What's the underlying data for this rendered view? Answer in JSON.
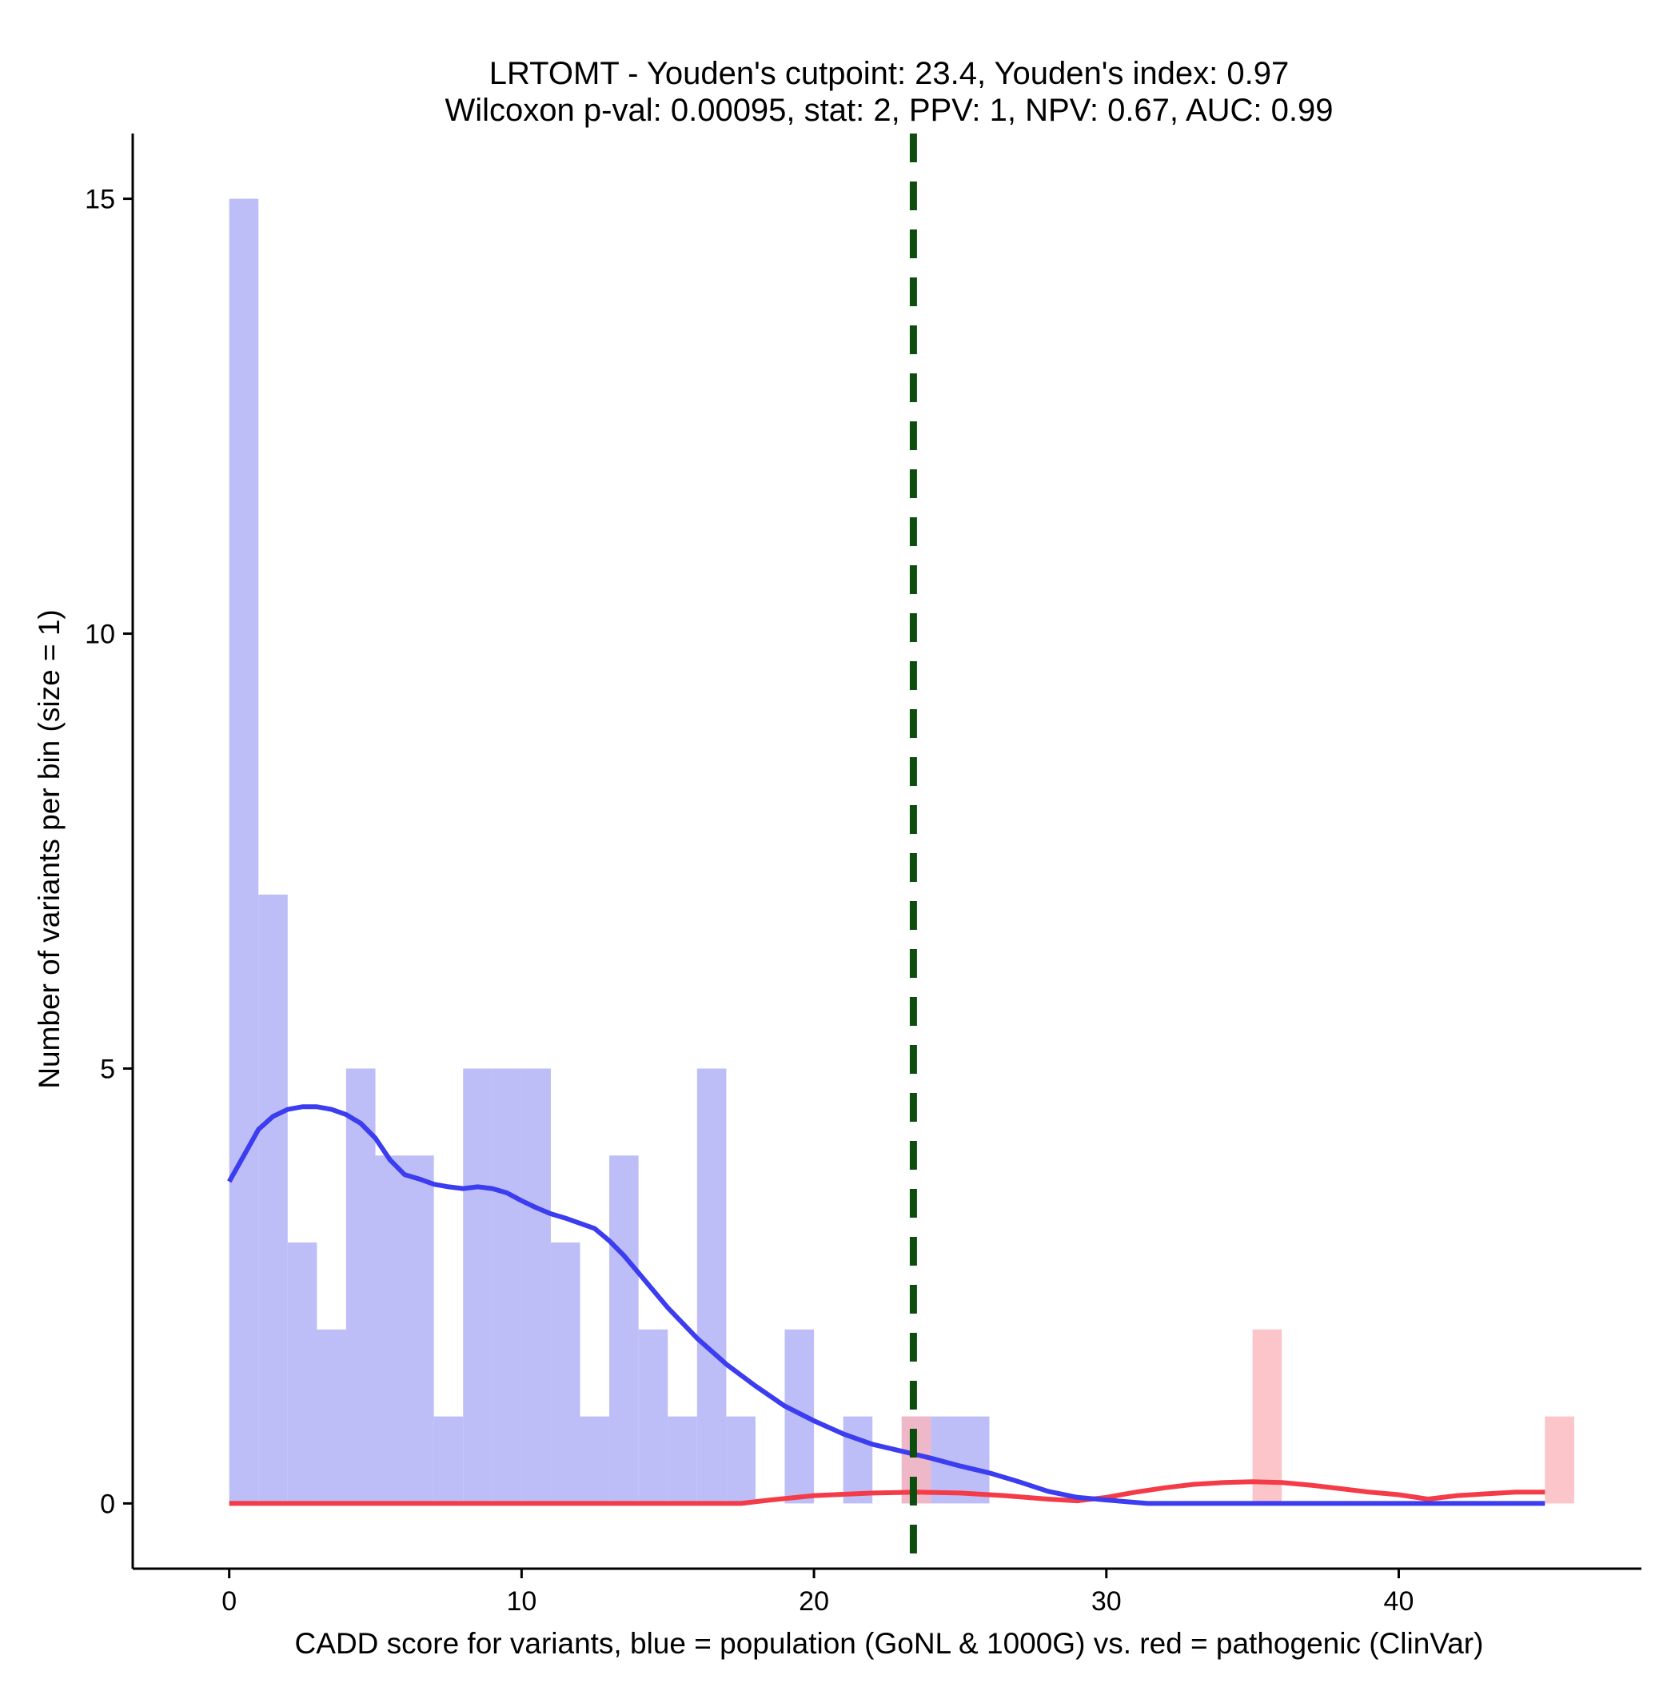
{
  "chart_data": {
    "type": "histogram",
    "title_line1": "LRTOMT - Youden's cutpoint: 23.4, Youden's index: 0.97",
    "title_line2": "Wilcoxon p-val: 0.00095, stat: 2, PPV: 1, NPV: 0.67, AUC: 0.99",
    "xlabel": "CADD score for variants, blue = population (GoNL & 1000G) vs. red = pathogenic (ClinVar)",
    "ylabel": "Number of variants per bin (size = 1)",
    "xlim": [
      -3.3,
      48.3
    ],
    "ylim": [
      -0.75,
      15.75
    ],
    "x_ticks": [
      0,
      10,
      20,
      30,
      40
    ],
    "y_ticks": [
      0,
      5,
      10,
      15
    ],
    "bin_size": 1,
    "cutpoint": 23.4,
    "series": [
      {
        "name": "population (GoNL & 1000G)",
        "color": "#0000ff",
        "bar_fill": "#bdbdf8",
        "bins": [
          {
            "x0": 0,
            "count": 15
          },
          {
            "x0": 1,
            "count": 7
          },
          {
            "x0": 2,
            "count": 3
          },
          {
            "x0": 3,
            "count": 2
          },
          {
            "x0": 4,
            "count": 5
          },
          {
            "x0": 5,
            "count": 4
          },
          {
            "x0": 6,
            "count": 4
          },
          {
            "x0": 7,
            "count": 1
          },
          {
            "x0": 8,
            "count": 5
          },
          {
            "x0": 9,
            "count": 5
          },
          {
            "x0": 10,
            "count": 5
          },
          {
            "x0": 11,
            "count": 3
          },
          {
            "x0": 12,
            "count": 1
          },
          {
            "x0": 13,
            "count": 4
          },
          {
            "x0": 14,
            "count": 2
          },
          {
            "x0": 15,
            "count": 1
          },
          {
            "x0": 16,
            "count": 5
          },
          {
            "x0": 17,
            "count": 1
          },
          {
            "x0": 19,
            "count": 2
          },
          {
            "x0": 21,
            "count": 1
          },
          {
            "x0": 23,
            "count": 1
          },
          {
            "x0": 24,
            "count": 1
          },
          {
            "x0": 25,
            "count": 1
          }
        ],
        "density_x": [
          0,
          0.5,
          1,
          1.5,
          2,
          2.5,
          3,
          3.5,
          4,
          4.5,
          5,
          5.5,
          6,
          6.5,
          7,
          7.5,
          8,
          8.5,
          9,
          9.5,
          10,
          10.5,
          11,
          11.5,
          12,
          12.5,
          13,
          13.5,
          14,
          15,
          16,
          17,
          18,
          19,
          20,
          21,
          22,
          23,
          24,
          25,
          26,
          27,
          28,
          29,
          30,
          31.4,
          35,
          40,
          45
        ],
        "density_y": [
          3.7,
          4.0,
          4.3,
          4.45,
          4.53,
          4.56,
          4.56,
          4.53,
          4.47,
          4.37,
          4.2,
          3.95,
          3.78,
          3.73,
          3.67,
          3.64,
          3.62,
          3.64,
          3.62,
          3.57,
          3.48,
          3.4,
          3.33,
          3.28,
          3.22,
          3.16,
          3.02,
          2.85,
          2.65,
          2.25,
          1.9,
          1.6,
          1.35,
          1.12,
          0.95,
          0.8,
          0.68,
          0.6,
          0.52,
          0.43,
          0.35,
          0.25,
          0.14,
          0.07,
          0.04,
          0.0,
          0.0,
          0.0,
          0.0
        ]
      },
      {
        "name": "pathogenic (ClinVar)",
        "color": "#ff0000",
        "bar_fill": "#fbb6bb",
        "bins": [
          {
            "x0": 23,
            "count": 1
          },
          {
            "x0": 35,
            "count": 2
          },
          {
            "x0": 45,
            "count": 1
          }
        ],
        "density_x": [
          0,
          17.5,
          18.5,
          20,
          22,
          23.5,
          25,
          26.5,
          28,
          29,
          30,
          31,
          32,
          33,
          34,
          35,
          36,
          37,
          38,
          39,
          40,
          41,
          42,
          43,
          44,
          45
        ],
        "density_y": [
          0.0,
          0.0,
          0.04,
          0.09,
          0.12,
          0.13,
          0.12,
          0.09,
          0.05,
          0.03,
          0.07,
          0.13,
          0.18,
          0.22,
          0.24,
          0.25,
          0.24,
          0.21,
          0.17,
          0.13,
          0.1,
          0.05,
          0.09,
          0.11,
          0.13,
          0.13
        ]
      }
    ]
  }
}
